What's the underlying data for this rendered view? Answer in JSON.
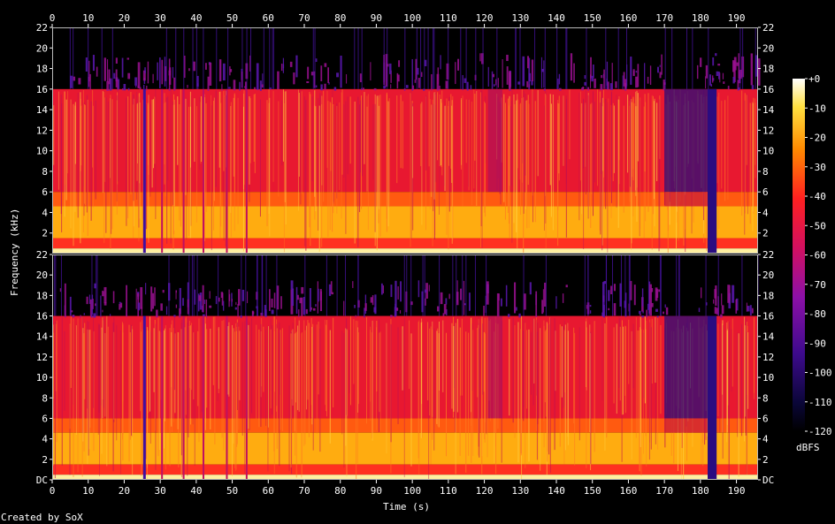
{
  "chart_data": {
    "type": "heatmap",
    "title": "",
    "xlabel": "Time (s)",
    "ylabel": "Frequency (kHz)",
    "xlim": [
      0,
      196
    ],
    "ylim_khz": [
      0,
      22
    ],
    "x_ticks": [
      "0",
      "10",
      "20",
      "30",
      "40",
      "50",
      "60",
      "70",
      "80",
      "90",
      "100",
      "110",
      "120",
      "130",
      "140",
      "150",
      "160",
      "170",
      "180",
      "190"
    ],
    "y_ticks_upper": [
      "22",
      "20",
      "18",
      "16",
      "14",
      "12",
      "10",
      "8",
      "6",
      "4",
      "2"
    ],
    "y_ticks_lower": [
      "22",
      "20",
      "18",
      "16",
      "14",
      "12",
      "10",
      "8",
      "6",
      "4",
      "2",
      "DC"
    ],
    "channels": 2,
    "colorbar": {
      "label": "dBFS",
      "ticks": [
        "+0",
        "-10",
        "-20",
        "-30",
        "-40",
        "-50",
        "-60",
        "-70",
        "-80",
        "-90",
        "-100",
        "-110",
        "-120"
      ],
      "range_dbfs": [
        -120,
        0
      ]
    },
    "lowpass_cutoff_khz": 16,
    "sparse_content_above_cutoff_khz": 19.5,
    "transient_dips_s": [
      25.5,
      30.5,
      36.5,
      42,
      48.5,
      54
    ],
    "section_change_s": [
      121,
      125,
      170
    ],
    "dropout_s": [
      182,
      184.5
    ],
    "grid": false
  },
  "footer": "Created by SoX"
}
